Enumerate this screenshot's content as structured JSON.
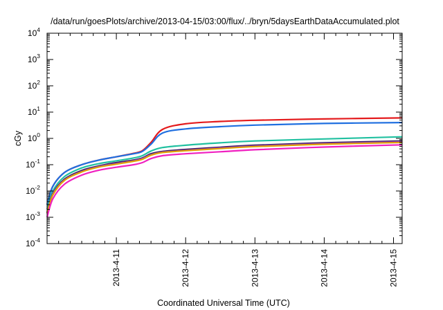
{
  "chart_data": {
    "type": "line",
    "title": "/data/run/goesPlots/archive/2013-04-15/03:00/flux/../bryn/5daysEarthDataAccumulated.plot",
    "xlabel": "Coordinated Universal Time (UTC)",
    "ylabel": "cGy",
    "yscale": "log",
    "ylim": [
      0.0001,
      10000
    ],
    "xlim": [
      "2013-04-10T00:00",
      "2013-04-15T03:00"
    ],
    "y_ticks": [
      {
        "base": "10",
        "exp": "-4"
      },
      {
        "base": "10",
        "exp": "-3"
      },
      {
        "base": "10",
        "exp": "-2"
      },
      {
        "base": "10",
        "exp": "-1"
      },
      {
        "base": "10",
        "exp": "0"
      },
      {
        "base": "10",
        "exp": "1"
      },
      {
        "base": "10",
        "exp": "2"
      },
      {
        "base": "10",
        "exp": "3"
      },
      {
        "base": "10",
        "exp": "4"
      }
    ],
    "x_ticks": [
      {
        "label": "2013-4-11",
        "value": "2013-04-11T00:00"
      },
      {
        "label": "2013-4-12",
        "value": "2013-04-12T00:00"
      },
      {
        "label": "2013-4-13",
        "value": "2013-04-13T00:00"
      },
      {
        "label": "2013-4-14",
        "value": "2013-04-14T00:00"
      },
      {
        "label": "2013-4-15",
        "value": "2013-04-15T00:00"
      }
    ],
    "grid": false,
    "series": [
      {
        "color": "#e41a1c",
        "x": [
          "2013-04-10T00:00",
          "2013-04-10T02:00",
          "2013-04-10T06:00",
          "2013-04-10T12:00",
          "2013-04-10T18:00",
          "2013-04-11T00:00",
          "2013-04-11T06:00",
          "2013-04-11T09:00",
          "2013-04-11T12:00",
          "2013-04-11T16:00",
          "2013-04-12T00:00",
          "2013-04-12T12:00",
          "2013-04-13T00:00",
          "2013-04-14T00:00",
          "2013-04-15T03:00"
        ],
        "y": [
          0.003,
          0.015,
          0.05,
          0.1,
          0.15,
          0.2,
          0.27,
          0.34,
          0.7,
          2.2,
          3.6,
          4.4,
          4.9,
          5.5,
          6.0
        ]
      },
      {
        "color": "#1f6fe0",
        "x": [
          "2013-04-10T00:00",
          "2013-04-10T02:00",
          "2013-04-10T06:00",
          "2013-04-10T12:00",
          "2013-04-10T18:00",
          "2013-04-11T00:00",
          "2013-04-11T06:00",
          "2013-04-11T09:00",
          "2013-04-11T12:00",
          "2013-04-11T16:00",
          "2013-04-12T00:00",
          "2013-04-12T12:00",
          "2013-04-13T00:00",
          "2013-04-14T00:00",
          "2013-04-15T03:00"
        ],
        "y": [
          0.003,
          0.015,
          0.05,
          0.1,
          0.15,
          0.2,
          0.26,
          0.32,
          0.6,
          1.6,
          2.3,
          2.8,
          3.2,
          3.7,
          4.0
        ]
      },
      {
        "color": "#20c0a0",
        "x": [
          "2013-04-10T00:00",
          "2013-04-10T02:00",
          "2013-04-10T06:00",
          "2013-04-10T12:00",
          "2013-04-10T18:00",
          "2013-04-11T00:00",
          "2013-04-11T06:00",
          "2013-04-11T09:00",
          "2013-04-11T12:00",
          "2013-04-11T16:00",
          "2013-04-12T00:00",
          "2013-04-12T12:00",
          "2013-04-13T00:00",
          "2013-04-14T00:00",
          "2013-04-15T03:00"
        ],
        "y": [
          0.002,
          0.01,
          0.035,
          0.075,
          0.11,
          0.14,
          0.18,
          0.22,
          0.33,
          0.45,
          0.55,
          0.68,
          0.8,
          0.95,
          1.15
        ]
      },
      {
        "color": "#3a1f5c",
        "x": [
          "2013-04-10T00:00",
          "2013-04-10T02:00",
          "2013-04-10T06:00",
          "2013-04-10T12:00",
          "2013-04-10T18:00",
          "2013-04-11T00:00",
          "2013-04-11T06:00",
          "2013-04-11T09:00",
          "2013-04-11T12:00",
          "2013-04-11T16:00",
          "2013-04-12T00:00",
          "2013-04-12T12:00",
          "2013-04-13T00:00",
          "2013-04-14T00:00",
          "2013-04-15T03:00"
        ],
        "y": [
          0.0015,
          0.008,
          0.028,
          0.06,
          0.09,
          0.12,
          0.15,
          0.18,
          0.26,
          0.32,
          0.38,
          0.46,
          0.55,
          0.68,
          0.8
        ]
      },
      {
        "color": "#9c3ad0",
        "x": [
          "2013-04-10T00:00",
          "2013-04-10T02:00",
          "2013-04-10T06:00",
          "2013-04-10T12:00",
          "2013-04-10T18:00",
          "2013-04-11T00:00",
          "2013-04-11T06:00",
          "2013-04-11T09:00",
          "2013-04-11T12:00",
          "2013-04-11T16:00",
          "2013-04-12T00:00",
          "2013-04-12T12:00",
          "2013-04-13T00:00",
          "2013-04-14T00:00",
          "2013-04-15T03:00"
        ],
        "y": [
          0.0014,
          0.0075,
          0.026,
          0.055,
          0.085,
          0.11,
          0.14,
          0.17,
          0.24,
          0.3,
          0.35,
          0.43,
          0.51,
          0.63,
          0.74
        ]
      },
      {
        "color": "#e0a000",
        "x": [
          "2013-04-10T00:00",
          "2013-04-10T02:00",
          "2013-04-10T06:00",
          "2013-04-10T12:00",
          "2013-04-10T18:00",
          "2013-04-11T00:00",
          "2013-04-11T06:00",
          "2013-04-11T09:00",
          "2013-04-11T12:00",
          "2013-04-11T16:00",
          "2013-04-12T00:00",
          "2013-04-12T12:00",
          "2013-04-13T00:00",
          "2013-04-14T00:00",
          "2013-04-15T03:00"
        ],
        "y": [
          0.0014,
          0.007,
          0.025,
          0.053,
          0.082,
          0.105,
          0.135,
          0.16,
          0.23,
          0.29,
          0.34,
          0.41,
          0.49,
          0.6,
          0.7
        ]
      },
      {
        "color": "#f020c0",
        "x": [
          "2013-04-10T00:00",
          "2013-04-10T02:00",
          "2013-04-10T06:00",
          "2013-04-10T12:00",
          "2013-04-10T18:00",
          "2013-04-11T00:00",
          "2013-04-11T06:00",
          "2013-04-11T09:00",
          "2013-04-11T12:00",
          "2013-04-11T16:00",
          "2013-04-12T00:00",
          "2013-04-12T12:00",
          "2013-04-13T00:00",
          "2013-04-14T00:00",
          "2013-04-15T03:00"
        ],
        "y": [
          0.001,
          0.005,
          0.018,
          0.04,
          0.062,
          0.08,
          0.1,
          0.12,
          0.17,
          0.22,
          0.26,
          0.31,
          0.37,
          0.47,
          0.57
        ]
      }
    ]
  }
}
